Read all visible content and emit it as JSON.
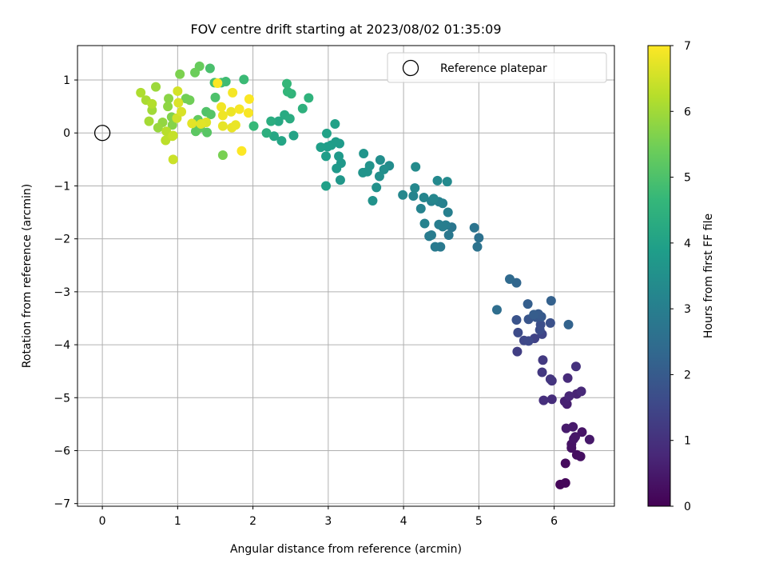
{
  "chart_data": {
    "type": "scatter",
    "title": "FOV centre drift starting at 2023/08/02 01:35:09",
    "xlabel": "Angular distance from reference (arcmin)",
    "ylabel": "Rotation from reference (arcmin)",
    "xlim": [
      -0.33,
      6.8
    ],
    "ylim": [
      -7.05,
      1.65
    ],
    "xticks": [
      0,
      1,
      2,
      3,
      4,
      5,
      6
    ],
    "yticks": [
      -7,
      -6,
      -5,
      -4,
      -3,
      -2,
      -1,
      0,
      1
    ],
    "grid": true,
    "legend": {
      "placement": "top-right",
      "entries": [
        "Reference platepar"
      ]
    },
    "reference": {
      "name": "Reference platepar",
      "x": 0,
      "y": 0
    },
    "colorbar": {
      "label": "Hours from first FF file",
      "min": 0,
      "max": 7,
      "ticks": [
        0,
        1,
        2,
        3,
        4,
        5,
        6,
        7
      ],
      "colormap": "viridis"
    },
    "points": [
      [
        6.08,
        -6.64,
        0.1
      ],
      [
        6.15,
        -6.61,
        0.12
      ],
      [
        6.15,
        -6.24,
        0.2
      ],
      [
        6.3,
        -6.08,
        0.25
      ],
      [
        6.35,
        -6.11,
        0.28
      ],
      [
        6.23,
        -5.95,
        0.32
      ],
      [
        6.23,
        -5.88,
        0.35
      ],
      [
        6.37,
        -5.65,
        0.38
      ],
      [
        6.26,
        -5.78,
        0.4
      ],
      [
        6.28,
        -5.74,
        0.42
      ],
      [
        6.47,
        -5.79,
        0.45
      ],
      [
        6.25,
        -5.55,
        0.5
      ],
      [
        6.16,
        -5.58,
        0.52
      ],
      [
        6.17,
        -5.12,
        0.6
      ],
      [
        6.14,
        -5.07,
        0.65
      ],
      [
        6.3,
        -4.93,
        0.7
      ],
      [
        6.2,
        -4.97,
        0.75
      ],
      [
        6.36,
        -4.88,
        0.8
      ],
      [
        6.18,
        -4.63,
        0.85
      ],
      [
        5.97,
        -5.03,
        0.9
      ],
      [
        5.86,
        -5.05,
        0.95
      ],
      [
        6.29,
        -4.41,
        1.0
      ],
      [
        5.97,
        -4.68,
        1.05
      ],
      [
        5.95,
        -4.65,
        1.1
      ],
      [
        5.84,
        -4.52,
        1.15
      ],
      [
        5.85,
        -4.29,
        1.2
      ],
      [
        5.51,
        -4.13,
        1.3
      ],
      [
        5.74,
        -3.88,
        1.4
      ],
      [
        5.84,
        -3.8,
        1.45
      ],
      [
        5.6,
        -3.92,
        1.5
      ],
      [
        5.66,
        -3.93,
        1.55
      ],
      [
        5.52,
        -3.77,
        1.6
      ],
      [
        5.81,
        -3.72,
        1.65
      ],
      [
        5.82,
        -3.62,
        1.7
      ],
      [
        5.95,
        -3.59,
        1.75
      ],
      [
        5.5,
        -3.53,
        1.8
      ],
      [
        5.66,
        -3.52,
        1.85
      ],
      [
        5.76,
        -3.48,
        1.9
      ],
      [
        5.83,
        -3.47,
        1.95
      ],
      [
        5.79,
        -3.42,
        2.0
      ],
      [
        5.73,
        -3.43,
        2.05
      ],
      [
        5.65,
        -3.23,
        2.1
      ],
      [
        5.96,
        -3.17,
        2.15
      ],
      [
        6.19,
        -3.62,
        2.2
      ],
      [
        5.5,
        -2.83,
        2.3
      ],
      [
        5.41,
        -2.76,
        2.4
      ],
      [
        5.24,
        -3.34,
        2.5
      ],
      [
        5.0,
        -1.98,
        2.6
      ],
      [
        4.98,
        -2.15,
        2.65
      ],
      [
        4.94,
        -1.79,
        2.7
      ],
      [
        4.64,
        -1.78,
        2.75
      ],
      [
        4.6,
        -1.93,
        2.8
      ],
      [
        4.49,
        -2.15,
        2.85
      ],
      [
        4.42,
        -2.15,
        2.88
      ],
      [
        4.34,
        -1.95,
        2.9
      ],
      [
        4.37,
        -1.93,
        2.92
      ],
      [
        4.47,
        -1.73,
        2.95
      ],
      [
        4.56,
        -1.74,
        2.97
      ],
      [
        4.52,
        -1.77,
        3.0
      ],
      [
        4.59,
        -1.5,
        3.02
      ],
      [
        4.52,
        -1.33,
        3.05
      ],
      [
        4.47,
        -1.3,
        3.08
      ],
      [
        4.37,
        -1.29,
        3.1
      ],
      [
        4.28,
        -1.71,
        3.12
      ],
      [
        4.23,
        -1.43,
        3.15
      ],
      [
        4.13,
        -1.19,
        3.18
      ],
      [
        4.27,
        -1.22,
        3.2
      ],
      [
        4.4,
        -1.24,
        3.22
      ],
      [
        3.99,
        -1.17,
        3.25
      ],
      [
        4.15,
        -1.04,
        3.27
      ],
      [
        4.45,
        -0.9,
        3.3
      ],
      [
        4.58,
        -0.92,
        3.32
      ],
      [
        4.16,
        -0.64,
        3.35
      ],
      [
        3.81,
        -0.62,
        3.4
      ],
      [
        3.69,
        -0.51,
        3.45
      ],
      [
        3.74,
        -0.69,
        3.48
      ],
      [
        3.68,
        -0.82,
        3.5
      ],
      [
        3.64,
        -1.03,
        3.52
      ],
      [
        3.59,
        -1.28,
        3.55
      ],
      [
        3.55,
        -0.62,
        3.58
      ],
      [
        3.52,
        -0.73,
        3.6
      ],
      [
        3.46,
        -0.75,
        3.62
      ],
      [
        3.47,
        -0.39,
        3.65
      ],
      [
        3.16,
        -0.89,
        3.7
      ],
      [
        3.17,
        -0.57,
        3.72
      ],
      [
        3.11,
        -0.67,
        3.75
      ],
      [
        3.14,
        -0.44,
        3.78
      ],
      [
        3.15,
        -0.2,
        3.8
      ],
      [
        3.1,
        -0.17,
        3.82
      ],
      [
        3.04,
        -0.23,
        3.85
      ],
      [
        2.99,
        -0.26,
        3.88
      ],
      [
        2.97,
        -0.44,
        3.9
      ],
      [
        2.9,
        -0.27,
        3.92
      ],
      [
        2.97,
        -1.0,
        3.95
      ],
      [
        3.09,
        0.17,
        3.97
      ],
      [
        2.98,
        -0.01,
        4.0
      ],
      [
        2.54,
        -0.05,
        4.05
      ],
      [
        2.38,
        -0.15,
        4.1
      ],
      [
        2.28,
        -0.06,
        4.15
      ],
      [
        2.34,
        0.22,
        4.2
      ],
      [
        2.42,
        0.34,
        4.25
      ],
      [
        2.49,
        0.27,
        4.3
      ],
      [
        2.24,
        0.22,
        4.35
      ],
      [
        2.18,
        0.0,
        4.4
      ],
      [
        2.66,
        0.46,
        4.45
      ],
      [
        2.74,
        0.66,
        4.5
      ],
      [
        2.51,
        0.74,
        4.55
      ],
      [
        2.46,
        0.78,
        4.6
      ],
      [
        2.45,
        0.93,
        4.65
      ],
      [
        2.01,
        0.13,
        4.7
      ],
      [
        1.88,
        1.01,
        4.75
      ],
      [
        1.64,
        0.97,
        4.8
      ],
      [
        1.58,
        0.95,
        4.85
      ],
      [
        1.49,
        0.95,
        4.9
      ],
      [
        1.43,
        1.22,
        4.95
      ],
      [
        1.5,
        0.67,
        5.0
      ],
      [
        1.38,
        0.4,
        5.05
      ],
      [
        1.44,
        0.35,
        5.1
      ],
      [
        1.39,
        0.01,
        5.15
      ],
      [
        1.24,
        0.03,
        5.2
      ],
      [
        1.3,
        0.1,
        5.25
      ],
      [
        1.27,
        0.25,
        5.3
      ],
      [
        1.29,
        1.26,
        5.35
      ],
      [
        1.23,
        1.14,
        5.4
      ],
      [
        1.16,
        0.62,
        5.45
      ],
      [
        1.11,
        0.65,
        5.5
      ],
      [
        1.6,
        -0.42,
        5.55
      ],
      [
        1.03,
        1.11,
        5.6
      ],
      [
        0.92,
        0.3,
        5.65
      ],
      [
        0.93,
        0.15,
        5.7
      ],
      [
        0.88,
        0.65,
        5.75
      ],
      [
        0.87,
        0.5,
        5.8
      ],
      [
        0.8,
        0.2,
        5.85
      ],
      [
        0.74,
        0.1,
        5.9
      ],
      [
        0.71,
        0.87,
        5.95
      ],
      [
        0.66,
        0.43,
        6.0
      ],
      [
        0.62,
        0.22,
        6.05
      ],
      [
        0.58,
        0.62,
        6.1
      ],
      [
        0.51,
        0.76,
        6.15
      ],
      [
        0.66,
        0.55,
        6.2
      ],
      [
        0.85,
        0.03,
        6.25
      ],
      [
        0.84,
        -0.14,
        6.3
      ],
      [
        0.93,
        -0.06,
        6.35
      ],
      [
        0.94,
        -0.05,
        6.4
      ],
      [
        0.94,
        -0.5,
        6.45
      ],
      [
        0.99,
        0.28,
        6.5
      ],
      [
        1.0,
        0.79,
        6.55
      ],
      [
        1.05,
        0.4,
        6.6
      ],
      [
        1.01,
        0.57,
        6.62
      ],
      [
        1.38,
        0.2,
        6.65
      ],
      [
        1.31,
        0.17,
        6.7
      ],
      [
        1.19,
        0.18,
        6.72
      ],
      [
        1.6,
        0.13,
        6.75
      ],
      [
        1.72,
        0.1,
        6.78
      ],
      [
        1.77,
        0.15,
        6.8
      ],
      [
        1.71,
        0.4,
        6.82
      ],
      [
        1.6,
        0.33,
        6.85
      ],
      [
        1.58,
        0.49,
        6.87
      ],
      [
        1.73,
        0.76,
        6.9
      ],
      [
        1.82,
        0.45,
        6.92
      ],
      [
        1.94,
        0.38,
        6.95
      ],
      [
        1.95,
        0.64,
        6.97
      ],
      [
        1.85,
        -0.34,
        6.99
      ],
      [
        1.53,
        0.94,
        7.0
      ]
    ]
  }
}
